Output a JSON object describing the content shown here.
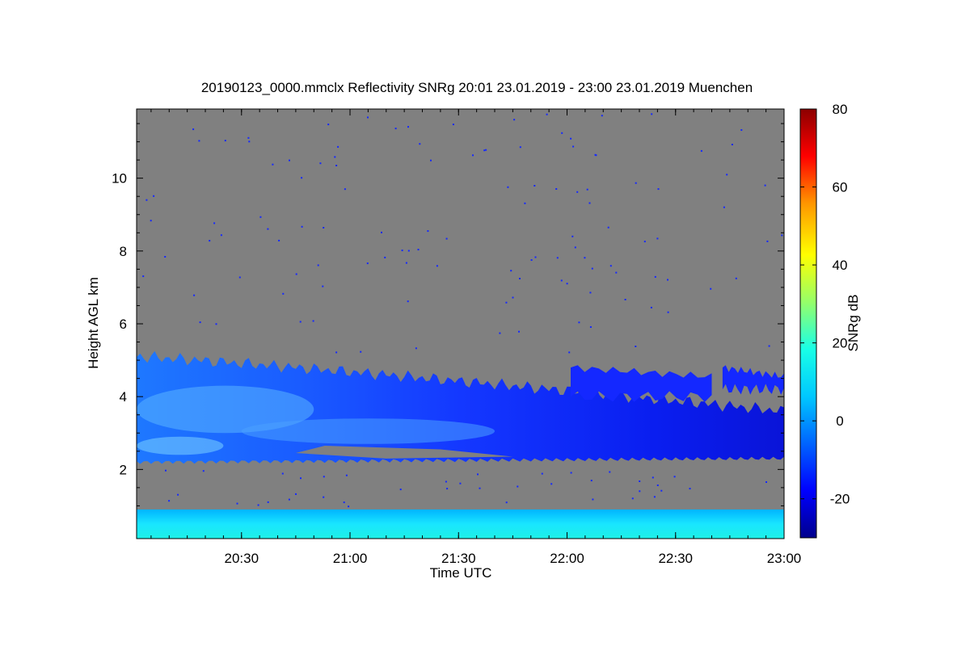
{
  "chart_data": {
    "type": "heatmap",
    "title": "20190123_0000.mmclx Reflectivity SNRg   20:01 23.01.2019 - 23:00 23.01.2019 Muenchen",
    "xlabel": "Time UTC",
    "ylabel": "Height AGL km",
    "x_range_minutes_utc": [
      1201,
      1380
    ],
    "ylim": [
      0.1,
      11.9
    ],
    "x_ticks": [
      {
        "minute": 1230,
        "label": "20:30"
      },
      {
        "minute": 1260,
        "label": "21:00"
      },
      {
        "minute": 1290,
        "label": "21:30"
      },
      {
        "minute": 1320,
        "label": "22:00"
      },
      {
        "minute": 1350,
        "label": "22:30"
      },
      {
        "minute": 1380,
        "label": "23:00"
      }
    ],
    "y_ticks": [
      2,
      4,
      6,
      8,
      10
    ],
    "y_tick_labels": [
      "2",
      "4",
      "6",
      "8",
      "10"
    ],
    "no_data_color": "#808080",
    "colorbar": {
      "label": "SNRg dB",
      "range": [
        -30,
        80
      ],
      "ticks": [
        -20,
        0,
        20,
        40,
        60,
        80
      ],
      "tick_labels": [
        "-20",
        "0",
        "20",
        "40",
        "60",
        "80"
      ],
      "colors": [
        "#00008c",
        "#0000ff",
        "#0064ff",
        "#00c8ff",
        "#19ffe6",
        "#96ff69",
        "#ffff00",
        "#ff9600",
        "#ff0000",
        "#8c0000"
      ]
    },
    "echo_layers": [
      {
        "name": "near-surface clutter",
        "t_start": 1201,
        "t_end": 1380,
        "base_km": 0.1,
        "top_km": 0.9,
        "snr_db": 8
      },
      {
        "name": "main cloud layer",
        "t_start": 1201,
        "t_end": 1380,
        "base_km_start": 2.2,
        "top_km_start": 5.1,
        "base_km_end": 2.3,
        "top_km_end": 3.6,
        "snr_db": -10
      },
      {
        "name": "upper cloud fragment",
        "t_start": 1321,
        "t_end": 1360,
        "base_km": 4.0,
        "top_km": 4.8,
        "snr_db": -12
      },
      {
        "name": "upper cloud fragment east",
        "t_start": 1363,
        "t_end": 1380,
        "base_km": 4.2,
        "top_km": 4.8,
        "snr_db": -12
      }
    ]
  }
}
